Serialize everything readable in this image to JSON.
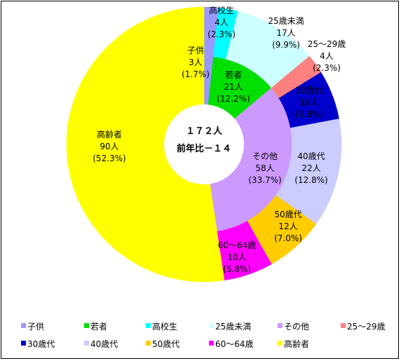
{
  "chart_data": {
    "type": "pie",
    "center": {
      "total": "１７２人",
      "change": "前年比－１４"
    },
    "categories": [
      "子供",
      "若者",
      "高校生",
      "25歳未満",
      "その他",
      "25～29歳",
      "30歳代",
      "40歳代",
      "50歳代",
      "60～64歳",
      "高齢者"
    ],
    "inner": [
      {
        "name": "子供",
        "count": "3人",
        "pct": "(1.7%)",
        "value": 1.7,
        "color": "#9999ff"
      },
      {
        "name": "若者",
        "count": "21人",
        "pct": "(12.2%)",
        "value": 12.2,
        "color": "#00e000"
      },
      {
        "name": "その他",
        "count": "58人",
        "pct": "(33.7%)",
        "value": 33.7,
        "color": "#cc99ff"
      },
      {
        "name": "高齢者",
        "count": "90人",
        "pct": "(52.3%)",
        "value": 52.3,
        "color": "#ffff00"
      }
    ],
    "outer": [
      {
        "name": "子供",
        "value": 1.7,
        "color": "#9999ff"
      },
      {
        "name": "高校生",
        "count": "4人",
        "pct": "(2.3%)",
        "value": 2.3,
        "color": "#00ffff"
      },
      {
        "name": "25歳未満",
        "count": "17人",
        "pct": "(9.9%)",
        "value": 9.9,
        "color": "#ccffff"
      },
      {
        "name": "25～29歳",
        "count": "4人",
        "pct": "(2.3%)",
        "value": 2.3,
        "color": "#ff8080"
      },
      {
        "name": "30歳代",
        "count": "10人",
        "pct": "(5.8%)",
        "value": 5.8,
        "color": "#0000cc"
      },
      {
        "name": "40歳代",
        "count": "22人",
        "pct": "(12.8%)",
        "value": 12.8,
        "color": "#ccccff"
      },
      {
        "name": "50歳代",
        "count": "12人",
        "pct": "(7.0%)",
        "value": 7.0,
        "color": "#ffcc00"
      },
      {
        "name": "60～64歳",
        "count": "10人",
        "pct": "(5.8%)",
        "value": 5.8,
        "color": "#ff00ff"
      },
      {
        "name": "高齢者",
        "value": 52.3,
        "color": "#ffff00"
      }
    ],
    "legend": [
      {
        "label": "子供",
        "color": "#9999ff"
      },
      {
        "label": "若者",
        "color": "#00e000"
      },
      {
        "label": "高校生",
        "color": "#00ffff"
      },
      {
        "label": "25歳未満",
        "color": "#ccffff"
      },
      {
        "label": "その他",
        "color": "#cc99ff"
      },
      {
        "label": "25～29歳",
        "color": "#ff8080"
      },
      {
        "label": "30歳代",
        "color": "#0000cc"
      },
      {
        "label": "40歳代",
        "color": "#ccccff"
      },
      {
        "label": "50歳代",
        "color": "#ffcc00"
      },
      {
        "label": "60～64歳",
        "color": "#ff00ff"
      },
      {
        "label": "高齢者",
        "color": "#ffff00"
      }
    ],
    "legend_position": "bottom"
  }
}
